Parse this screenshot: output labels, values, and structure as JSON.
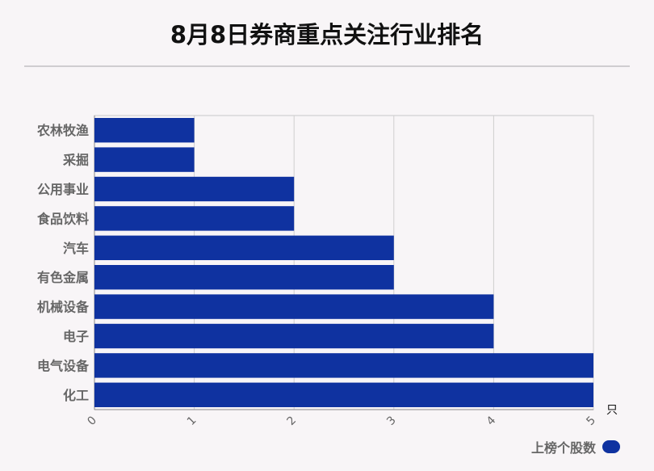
{
  "title": "8月8日券商重点关注行业排名",
  "unit": "只",
  "legend": {
    "label": "上榜个股数",
    "color": "#0f32a0"
  },
  "chart_data": {
    "type": "bar",
    "orientation": "horizontal",
    "title": "8月8日券商重点关注行业排名",
    "xlabel": "只",
    "ylabel": "",
    "categories": [
      "农林牧渔",
      "采掘",
      "公用事业",
      "食品饮料",
      "汽车",
      "有色金属",
      "机械设备",
      "电子",
      "电气设备",
      "化工"
    ],
    "series": [
      {
        "name": "上榜个股数",
        "values": [
          1,
          1,
          2,
          2,
          3,
          3,
          4,
          4,
          5,
          5
        ],
        "color": "#0f32a0"
      }
    ],
    "xlim": [
      0,
      5
    ],
    "xticks": [
      0,
      1,
      2,
      3,
      4,
      5
    ],
    "grid": true,
    "legend_position": "bottom-right"
  }
}
